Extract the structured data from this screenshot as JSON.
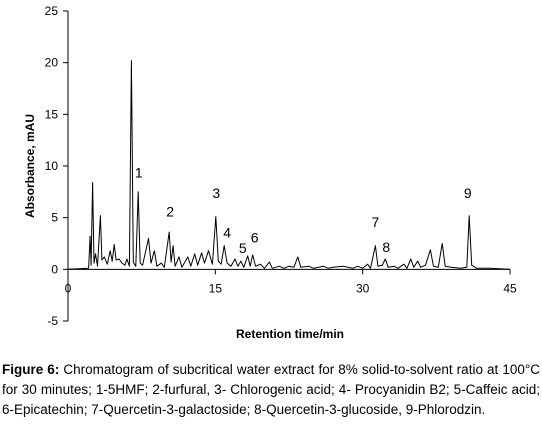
{
  "chart_data": {
    "type": "line",
    "xlabel": "Retention time/min",
    "ylabel": "Absorbance, mAU",
    "xlim": [
      0,
      45
    ],
    "ylim": [
      -5,
      25
    ],
    "xticks": [
      0,
      15,
      30,
      45
    ],
    "yticks": [
      -5,
      0,
      5,
      10,
      15,
      20,
      25
    ],
    "grid": false,
    "series": [
      {
        "points": [
          [
            0,
            0
          ],
          [
            2.1,
            0.1
          ],
          [
            2.25,
            3.2
          ],
          [
            2.35,
            0.4
          ],
          [
            2.5,
            8.4
          ],
          [
            2.65,
            0.6
          ],
          [
            2.8,
            1.5
          ],
          [
            3.0,
            0.3
          ],
          [
            3.3,
            5.2
          ],
          [
            3.45,
            0.9
          ],
          [
            3.7,
            1.2
          ],
          [
            4.0,
            0.5
          ],
          [
            4.3,
            1.8
          ],
          [
            4.5,
            0.8
          ],
          [
            4.7,
            2.4
          ],
          [
            4.9,
            0.9
          ],
          [
            5.2,
            1.0
          ],
          [
            5.5,
            0.6
          ],
          [
            5.8,
            0.4
          ],
          [
            6.0,
            1.0
          ],
          [
            6.25,
            0.3
          ],
          [
            6.45,
            20.2
          ],
          [
            6.65,
            0.7
          ],
          [
            6.9,
            0.3
          ],
          [
            7.15,
            7.5
          ],
          [
            7.35,
            0.6
          ],
          [
            7.6,
            0.4
          ],
          [
            8.2,
            3.0
          ],
          [
            8.45,
            0.6
          ],
          [
            8.8,
            1.8
          ],
          [
            9.05,
            0.3
          ],
          [
            9.5,
            0.6
          ],
          [
            9.8,
            0.2
          ],
          [
            10.3,
            3.6
          ],
          [
            10.5,
            0.7
          ],
          [
            10.7,
            2.3
          ],
          [
            10.9,
            0.3
          ],
          [
            11.3,
            1.2
          ],
          [
            11.6,
            0.2
          ],
          [
            12.2,
            1.2
          ],
          [
            12.5,
            0.3
          ],
          [
            12.9,
            1.5
          ],
          [
            13.2,
            0.4
          ],
          [
            13.6,
            1.6
          ],
          [
            13.9,
            0.6
          ],
          [
            14.3,
            1.8
          ],
          [
            14.7,
            0.5
          ],
          [
            15.05,
            5.1
          ],
          [
            15.3,
            0.8
          ],
          [
            15.6,
            0.5
          ],
          [
            15.9,
            2.3
          ],
          [
            16.2,
            0.6
          ],
          [
            16.6,
            0.3
          ],
          [
            17.0,
            1.0
          ],
          [
            17.3,
            0.3
          ],
          [
            17.6,
            0.8
          ],
          [
            17.9,
            0.2
          ],
          [
            18.3,
            1.3
          ],
          [
            18.55,
            0.3
          ],
          [
            18.8,
            1.4
          ],
          [
            19.1,
            0.3
          ],
          [
            19.6,
            0.5
          ],
          [
            20.0,
            0.1
          ],
          [
            20.5,
            0.7
          ],
          [
            20.8,
            0.1
          ],
          [
            21.5,
            0.3
          ],
          [
            22.0,
            0.1
          ],
          [
            22.5,
            0.3
          ],
          [
            23.0,
            0.2
          ],
          [
            23.4,
            1.2
          ],
          [
            23.7,
            0.2
          ],
          [
            24.5,
            0.3
          ],
          [
            25.0,
            0.1
          ],
          [
            26.0,
            0.3
          ],
          [
            26.5,
            0.1
          ],
          [
            27.0,
            0.2
          ],
          [
            28.0,
            0.3
          ],
          [
            29.0,
            0.1
          ],
          [
            29.5,
            0.3
          ],
          [
            30.0,
            0.1
          ],
          [
            30.5,
            0.5
          ],
          [
            30.8,
            0.1
          ],
          [
            31.3,
            2.3
          ],
          [
            31.55,
            0.3
          ],
          [
            32.0,
            0.4
          ],
          [
            32.3,
            1.0
          ],
          [
            32.6,
            0.2
          ],
          [
            33.2,
            0.3
          ],
          [
            33.6,
            0.1
          ],
          [
            34.2,
            0.5
          ],
          [
            34.5,
            0.1
          ],
          [
            34.9,
            1.0
          ],
          [
            35.2,
            0.2
          ],
          [
            35.6,
            0.8
          ],
          [
            35.9,
            0.2
          ],
          [
            36.4,
            0.4
          ],
          [
            36.9,
            1.9
          ],
          [
            37.2,
            0.3
          ],
          [
            37.7,
            0.2
          ],
          [
            38.1,
            2.5
          ],
          [
            38.4,
            0.3
          ],
          [
            39.0,
            0.2
          ],
          [
            40.0,
            0.1
          ],
          [
            40.6,
            0.2
          ],
          [
            40.85,
            5.2
          ],
          [
            41.1,
            0.4
          ],
          [
            41.6,
            0.1
          ],
          [
            43.0,
            0.1
          ],
          [
            45.0,
            0
          ]
        ]
      }
    ],
    "peak_labels": [
      {
        "label": "1",
        "x": 7.2,
        "y": 8.9
      },
      {
        "label": "2",
        "x": 10.4,
        "y": 5.1
      },
      {
        "label": "3",
        "x": 15.1,
        "y": 6.9
      },
      {
        "label": "4",
        "x": 16.2,
        "y": 3.1
      },
      {
        "label": "5",
        "x": 17.8,
        "y": 1.6
      },
      {
        "label": "6",
        "x": 19.0,
        "y": 2.6
      },
      {
        "label": "7",
        "x": 31.3,
        "y": 4.1
      },
      {
        "label": "8",
        "x": 32.4,
        "y": 1.7
      },
      {
        "label": "9",
        "x": 40.7,
        "y": 6.9
      }
    ]
  },
  "caption": {
    "label": "Figure 6:",
    "text": " Chromatogram of subcritical water extract for 8% solid-to-solvent ratio at 100°C for 30 minutes; 1-5HMF; 2-furfural, 3- Chlorogenic acid; 4- Procyanidin B2; 5-Caffeic acid; 6-Epicatechin; 7-Quercetin-3-galactoside; 8-Quercetin-3-glucoside, 9-Phlorodzin."
  }
}
